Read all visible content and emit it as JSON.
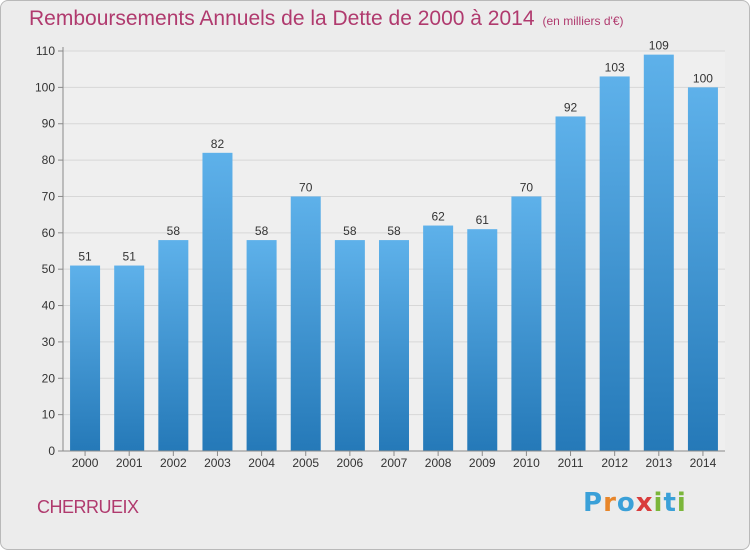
{
  "page": {
    "title": "Remboursements Annuels de la Dette de 2000 à 2014",
    "subtitle": "(en milliers d'€)",
    "commune": "CHERRUEIX",
    "logo": {
      "letters": [
        "P",
        "r",
        "o",
        "x",
        "i",
        "t",
        "i"
      ],
      "colors": [
        "#3aa0d8",
        "#e8862a",
        "#3aa0d8",
        "#d93c3c",
        "#7bb63a",
        "#3aa0d8",
        "#7bb63a"
      ]
    }
  },
  "chart_data": {
    "type": "bar",
    "categories": [
      "2000",
      "2001",
      "2002",
      "2003",
      "2004",
      "2005",
      "2006",
      "2007",
      "2008",
      "2009",
      "2010",
      "2011",
      "2012",
      "2013",
      "2014"
    ],
    "values": [
      51,
      51,
      58,
      82,
      58,
      70,
      58,
      58,
      62,
      61,
      70,
      92,
      103,
      109,
      100
    ],
    "data_labels": [
      "51",
      "51",
      "58",
      "82",
      "58",
      "70",
      "58",
      "58",
      "62",
      "61",
      "70",
      "92",
      "103",
      "109",
      "100"
    ],
    "yticks": [
      0,
      10,
      20,
      30,
      40,
      50,
      60,
      70,
      80,
      90,
      100,
      110
    ],
    "ylim": [
      0,
      110
    ],
    "grid": true,
    "colors": {
      "bar_top": "#5eb1ea",
      "bar_bottom": "#2579b8",
      "grid": "#d7d7d7",
      "axis": "#8a8a8a",
      "text": "#333333"
    }
  }
}
